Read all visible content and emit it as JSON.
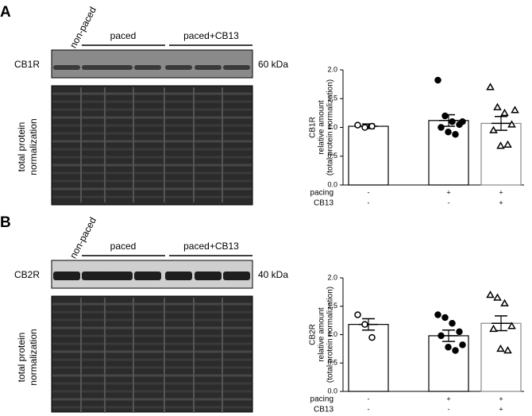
{
  "panels": [
    {
      "letter": "A",
      "lanes": [
        "non-paced",
        "paced",
        "paced+CB13"
      ],
      "band_label": "CB1R",
      "kda": "60 kDa",
      "total_label": [
        "total protein",
        "normalization"
      ]
    },
    {
      "letter": "B",
      "lanes": [
        "non-paced",
        "paced",
        "paced+CB13"
      ],
      "band_label": "CB2R",
      "kda": "40 kDa",
      "total_label": [
        "total protein",
        "normalization"
      ]
    }
  ],
  "chart_data": [
    {
      "type": "bar",
      "ylabel": [
        "CB1R",
        "relative amount",
        "(total protein normalization)"
      ],
      "categories": [
        null,
        null,
        null
      ],
      "values": [
        1.02,
        1.12,
        1.07
      ],
      "errors": [
        0.04,
        0.1,
        0.12
      ],
      "points": [
        [
          1.04,
          1.0,
          1.02
        ],
        [
          1.82,
          1.2,
          1.1,
          1.05,
          1.0,
          0.92,
          0.88,
          1.1
        ],
        [
          1.7,
          1.35,
          1.25,
          1.05,
          0.95,
          0.68,
          0.7,
          1.3
        ]
      ],
      "markers": [
        "open-circle",
        "filled-circle",
        "open-triangle"
      ],
      "bar_colors": [
        "#000000",
        "#000000",
        "#888888"
      ],
      "ylim": [
        0,
        2
      ],
      "yticks": [
        {
          "value": 0,
          "label": "0.0"
        },
        {
          "value": 0.5,
          "label": "0.5"
        },
        {
          "value": 1,
          "label": "1.0"
        },
        {
          "value": 1.5,
          "label": "1.5"
        },
        {
          "value": 2,
          "label": "2.0"
        }
      ],
      "x_rows": [
        {
          "label": "pacing",
          "values": [
            "-",
            "+",
            "+"
          ]
        },
        {
          "label": "CB13",
          "values": [
            "-",
            "-",
            "+"
          ]
        }
      ]
    },
    {
      "type": "bar",
      "ylabel": [
        "CB2R",
        "relative amount",
        "(total protein normalization)"
      ],
      "categories": [
        null,
        null,
        null
      ],
      "values": [
        1.18,
        0.98,
        1.2
      ],
      "errors": [
        0.1,
        0.1,
        0.13
      ],
      "points": [
        [
          1.35,
          1.18,
          0.95
        ],
        [
          1.35,
          1.3,
          1.2,
          1.05,
          0.98,
          0.78,
          0.72,
          0.82
        ],
        [
          1.7,
          1.65,
          1.55,
          1.15,
          1.1,
          0.75,
          0.72
        ]
      ],
      "markers": [
        "open-circle",
        "filled-circle",
        "open-triangle"
      ],
      "bar_colors": [
        "#000000",
        "#000000",
        "#888888"
      ],
      "ylim": [
        0,
        2
      ],
      "yticks": [
        {
          "value": 0,
          "label": "0.0"
        },
        {
          "value": 0.5,
          "label": "0.5"
        },
        {
          "value": 1,
          "label": "1.0"
        },
        {
          "value": 1.5,
          "label": "1.5"
        },
        {
          "value": 2,
          "label": "2.0"
        }
      ],
      "x_rows": [
        {
          "label": "pacing",
          "values": [
            "-",
            "+",
            "+"
          ]
        },
        {
          "label": "CB13",
          "values": [
            "-",
            "-",
            "+"
          ]
        }
      ]
    }
  ]
}
